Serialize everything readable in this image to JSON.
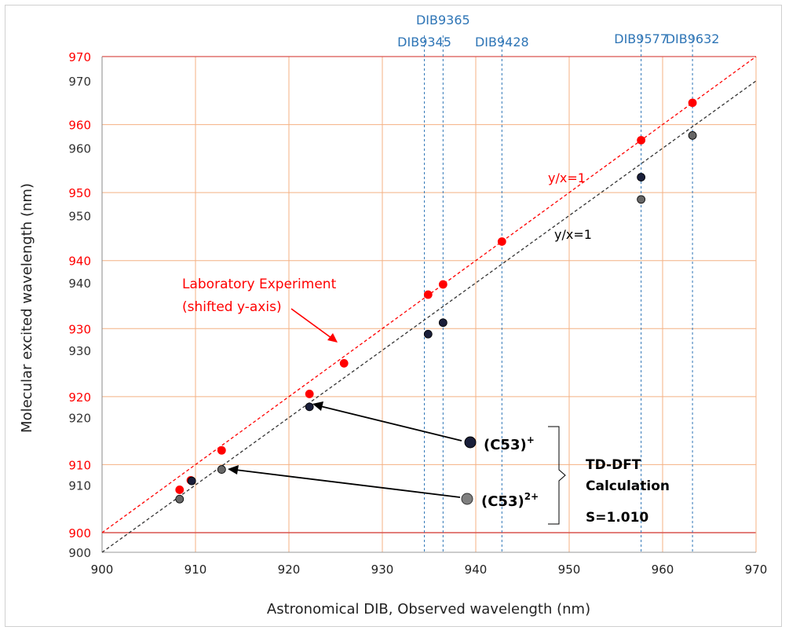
{
  "chart_data": {
    "type": "scatter",
    "xlabel": "Astronomical DIB, Observed wavelength (nm)",
    "ylabel": "Molecular excited wavelength (nm)",
    "xlim": [
      900,
      970
    ],
    "ylim_black": [
      900,
      970
    ],
    "ylim_red": [
      900,
      970
    ],
    "x_ticks": [
      "900",
      "910",
      "920",
      "930",
      "940",
      "950",
      "960",
      "970"
    ],
    "y_ticks_black": [
      "900",
      "910",
      "920",
      "930",
      "940",
      "950",
      "960",
      "970"
    ],
    "y_ticks_red": [
      "900",
      "910",
      "920",
      "930",
      "940",
      "950",
      "960",
      "970"
    ],
    "dib_lines": [
      {
        "name": "DIB9345",
        "x": 934.5
      },
      {
        "name": "DIB9365",
        "x": 936.5
      },
      {
        "name": "DIB9428",
        "x": 942.8
      },
      {
        "name": "DIB9577",
        "x": 957.7
      },
      {
        "name": "DIB9632",
        "x": 963.2
      }
    ],
    "series": [
      {
        "name": "Laboratory Experiment",
        "axis": "red",
        "color": "#ff0000",
        "points": [
          [
            908.3,
            906.3
          ],
          [
            909.5,
            907.7
          ],
          [
            912.8,
            912.1
          ],
          [
            922.2,
            920.4
          ],
          [
            925.9,
            924.9
          ],
          [
            934.9,
            935.0
          ],
          [
            936.5,
            936.5
          ],
          [
            942.8,
            942.8
          ],
          [
            957.7,
            957.7
          ],
          [
            963.2,
            963.2
          ]
        ]
      },
      {
        "name": "(C53)+",
        "axis": "black",
        "color": "#1a1f3a",
        "points": [
          [
            909.6,
            910.6
          ],
          [
            922.2,
            921.6
          ],
          [
            934.9,
            932.4
          ],
          [
            936.5,
            934.1
          ],
          [
            957.7,
            955.7
          ]
        ]
      },
      {
        "name": "(C53)2+",
        "axis": "black",
        "color": "#666666",
        "points": [
          [
            908.3,
            907.9
          ],
          [
            912.8,
            912.3
          ],
          [
            963.2,
            961.9
          ],
          [
            957.7,
            952.4
          ]
        ]
      }
    ],
    "lines": [
      {
        "label": "y/x=1",
        "axis": "red",
        "color": "#ff0000"
      },
      {
        "label": "y/x=1",
        "axis": "black",
        "color": "#333333"
      }
    ]
  },
  "annotations": {
    "lab_line1": "Laboratory Experiment",
    "lab_line2": "(shifted y-axis)",
    "red_fit": "y/x=1",
    "black_fit": "y/x=1",
    "c53_plus": "(C53)",
    "c53_plus_sup": "+",
    "c53_2plus": "(C53)",
    "c53_2plus_sup": "2+",
    "tddft1": "TD-DFT",
    "tddft2": "Calculation",
    "scale": "S=1.010"
  },
  "colors": {
    "red": "#ff0000",
    "grid": "#f4b183",
    "dib": "#2e75b6",
    "frame": "#d9534f"
  }
}
